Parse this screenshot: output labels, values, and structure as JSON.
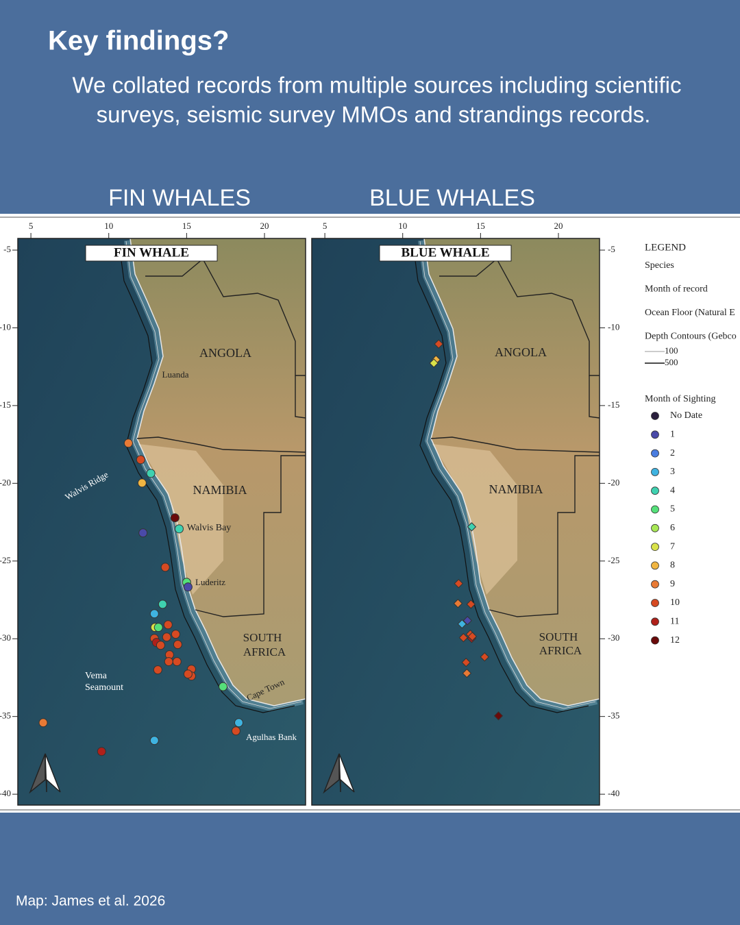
{
  "header": {
    "title": "Key findings?",
    "lines": [
      "We collated records from multiple sources  including scientific",
      "surveys, seismic survey MMOs and strandings records."
    ]
  },
  "sections": [
    "FIN WHALES",
    "BLUE WHALES"
  ],
  "map_axes": {
    "xlim": [
      4.16,
      22.64
    ],
    "ylim": [
      -40.7,
      -4.25
    ],
    "xticks": [
      5,
      10,
      15,
      20
    ],
    "yticks": [
      -5,
      -10,
      -15,
      -20,
      -25,
      -30,
      -35,
      -40
    ]
  },
  "maps": [
    {
      "title": "FIN WHALE",
      "labels": [
        "ANGOLA",
        "Luanda",
        "NAMIBIA",
        "Walvis Bay",
        "Luderitz",
        "SOUTH",
        "AFRICA",
        "Cape Town",
        "Agulhas Bank",
        "Walvis Ridge",
        "Vema",
        "Seamount"
      ],
      "sightings": {
        "lon": [
          11.26,
          12.05,
          12.7,
          12.14,
          14.25,
          14.52,
          12.2,
          13.63,
          15.0,
          15.09,
          13.46,
          12.93,
          12.97,
          13.19,
          13.81,
          12.93,
          13.06,
          13.33,
          13.72,
          14.3,
          14.43,
          13.9,
          14.38,
          13.85,
          13.15,
          15.31,
          15.31,
          15.09,
          17.34,
          18.35,
          18.17,
          5.79,
          9.54,
          12.93
        ],
        "lat": [
          -17.42,
          -18.48,
          -19.36,
          -19.98,
          -22.22,
          -22.93,
          -23.19,
          -25.4,
          -26.37,
          -26.67,
          -27.78,
          -28.39,
          -29.27,
          -29.27,
          -29.1,
          -29.98,
          -30.24,
          -30.42,
          -29.89,
          -29.71,
          -30.37,
          -31.03,
          -31.47,
          -31.47,
          -32.0,
          -31.96,
          -32.4,
          -32.27,
          -33.08,
          -35.4,
          -35.93,
          -35.4,
          -37.25,
          -36.54
        ],
        "month": [
          9,
          10,
          4,
          8,
          12,
          4,
          1,
          10,
          5,
          1,
          4,
          3,
          7,
          5,
          10,
          10,
          11,
          10,
          10,
          10,
          10,
          10,
          10,
          10,
          10,
          10,
          10,
          10,
          5,
          3,
          10,
          9,
          11,
          3
        ]
      }
    },
    {
      "title": "BLUE WHALE",
      "labels": [
        "ANGOLA",
        "NAMIBIA",
        "SOUTH",
        "AFRICA"
      ],
      "sightings": {
        "lon": [
          12.31,
          12.14,
          12.0,
          14.43,
          13.59,
          13.55,
          14.38,
          14.16,
          13.81,
          14.34,
          14.43,
          13.9,
          14.47,
          14.07,
          14.12,
          15.26,
          16.15
        ],
        "lat": [
          -11.04,
          -12.05,
          -12.27,
          -22.8,
          -26.45,
          -27.73,
          -27.78,
          -28.83,
          -29.05,
          -29.71,
          -29.98,
          -29.93,
          -29.85,
          -31.52,
          -32.22,
          -31.17,
          -34.96
        ],
        "month": [
          10,
          8,
          7,
          4,
          10,
          9,
          10,
          1,
          3,
          10,
          11,
          10,
          10,
          10,
          9,
          10,
          12
        ]
      }
    }
  ],
  "legend": {
    "title": "LEGEND",
    "items": [
      "Species",
      "Month of record",
      "Ocean Floor (Natural E",
      "Depth Contours (Gebco"
    ],
    "depths": [
      100,
      500
    ],
    "months_title": "Month of Sighting",
    "months": [
      {
        "label": "No Date",
        "color": "#2a1f3d"
      },
      {
        "label": "1",
        "color": "#4a4aa8"
      },
      {
        "label": "2",
        "color": "#4a7de0"
      },
      {
        "label": "3",
        "color": "#3fb3e0"
      },
      {
        "label": "4",
        "color": "#3fd1b0"
      },
      {
        "label": "5",
        "color": "#55e07a"
      },
      {
        "label": "6",
        "color": "#a8e855"
      },
      {
        "label": "7",
        "color": "#d9e24a"
      },
      {
        "label": "8",
        "color": "#f0b542"
      },
      {
        "label": "9",
        "color": "#e87a35"
      },
      {
        "label": "10",
        "color": "#d64a22"
      },
      {
        "label": "11",
        "color": "#b0201a"
      },
      {
        "label": "12",
        "color": "#6a0a0a"
      }
    ]
  },
  "credit": "Map: James et al. 2026"
}
